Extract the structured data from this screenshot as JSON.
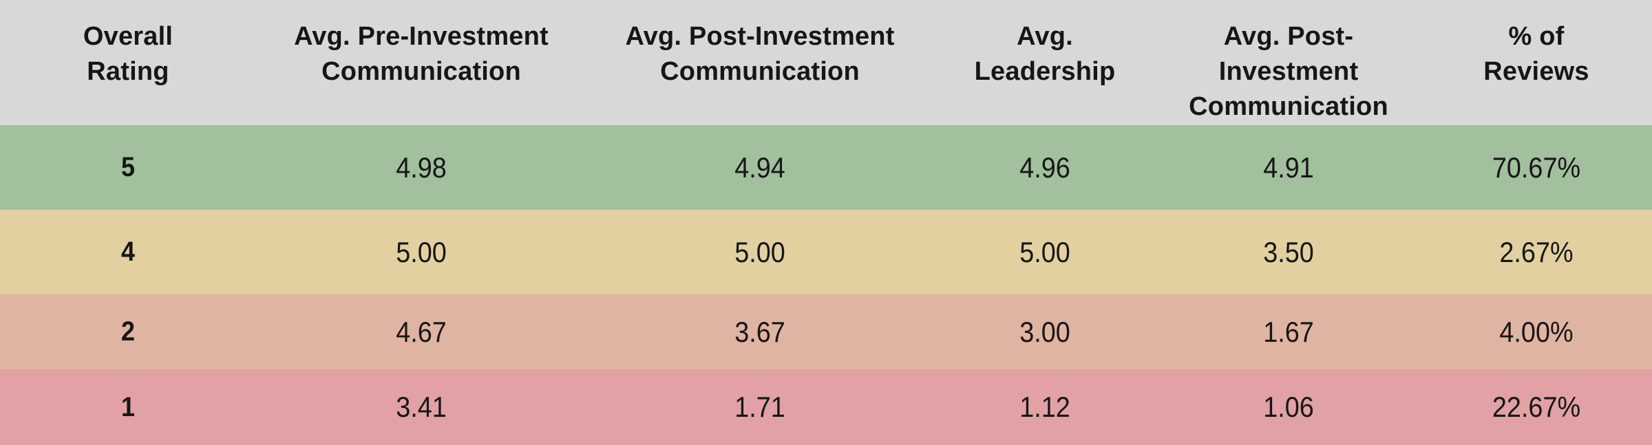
{
  "ui": {
    "headers": [
      "Overall\nRating",
      "Avg. Pre-Investment\nCommunication",
      "Avg. Post-Investment\nCommunication",
      "Avg.\nLeadership",
      "Avg. Post-Investment\nCommunication",
      "% of\nReviews"
    ]
  },
  "colors": {
    "header_bg": "#d8d8d8",
    "text": "#161616",
    "row_green": "#a2bf9e",
    "row_tan": "#e2d0a1",
    "row_salmon": "#e0b4a2",
    "row_pink": "#e1a1a5"
  },
  "chart_data": {
    "type": "table",
    "title": "",
    "columns": [
      "Overall Rating",
      "Avg. Pre-Investment Communication",
      "Avg. Post-Investment Communication",
      "Avg. Leadership",
      "Avg. Post-Investment Communication",
      "% of Reviews"
    ],
    "rows": [
      [
        "5",
        "4.98",
        "4.94",
        "4.96",
        "4.91",
        "70.67%"
      ],
      [
        "4",
        "5.00",
        "5.00",
        "5.00",
        "3.50",
        "2.67%"
      ],
      [
        "2",
        "4.67",
        "3.67",
        "3.00",
        "1.67",
        "4.00%"
      ],
      [
        "1",
        "3.41",
        "1.71",
        "1.12",
        "1.06",
        "22.67%"
      ]
    ],
    "row_colors": [
      "#a2bf9e",
      "#e2d0a1",
      "#e0b4a2",
      "#e1a1a5"
    ],
    "layout": {
      "header_background": "#d8d8d8",
      "grid": false,
      "notes": "rows color-coded green-to-red by overall rating"
    }
  }
}
